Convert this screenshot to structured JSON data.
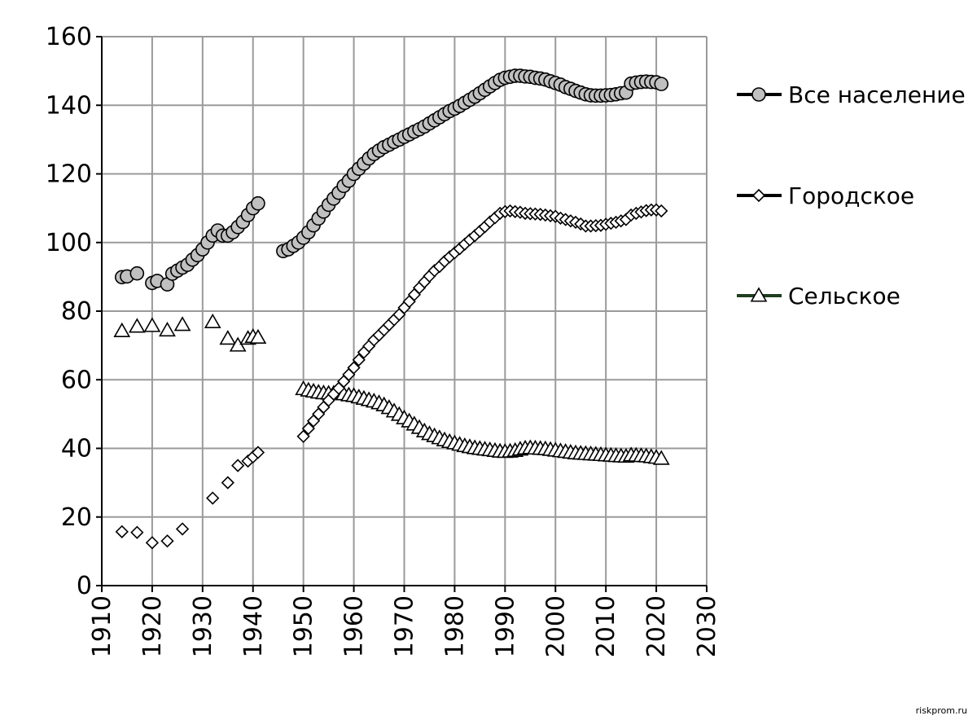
{
  "chart_data": {
    "type": "scatter",
    "xlim": [
      1910,
      2030
    ],
    "ylim": [
      0,
      160
    ],
    "x_ticks": [
      "1910",
      "1920",
      "1930",
      "1940",
      "1950",
      "1960",
      "1970",
      "1980",
      "1990",
      "2000",
      "2010",
      "2020",
      "2030"
    ],
    "y_ticks": [
      "0",
      "20",
      "40",
      "60",
      "80",
      "100",
      "120",
      "140",
      "160"
    ],
    "grid": true,
    "legend_position": "right",
    "series": [
      {
        "name": "Все население",
        "marker": "circle",
        "marker_fill": "#c0c0c0",
        "line_color": "#000000",
        "points": [
          [
            1914,
            89.9
          ],
          [
            1915,
            90.1
          ],
          [
            1917,
            91.0
          ],
          [
            1920,
            88.2
          ],
          [
            1921,
            88.8
          ],
          [
            1923,
            87.8
          ],
          [
            1924,
            90.9
          ],
          [
            1925,
            91.8
          ],
          [
            1926,
            92.7
          ],
          [
            1927,
            93.5
          ],
          [
            1928,
            95.0
          ],
          [
            1929,
            96.3
          ],
          [
            1930,
            98.0
          ],
          [
            1931,
            100.0
          ],
          [
            1932,
            102.0
          ],
          [
            1933,
            103.5
          ],
          [
            1934,
            102.0
          ],
          [
            1935,
            102.0
          ],
          [
            1936,
            103.0
          ],
          [
            1937,
            104.5
          ],
          [
            1938,
            106.0
          ],
          [
            1939,
            108.0
          ],
          [
            1940,
            110.0
          ],
          [
            1941,
            111.4
          ],
          [
            1946,
            97.5
          ],
          [
            1947,
            98.0
          ],
          [
            1948,
            99.0
          ],
          [
            1949,
            100.0
          ],
          [
            1950,
            101.4
          ],
          [
            1951,
            103.0
          ],
          [
            1952,
            105.0
          ],
          [
            1953,
            107.0
          ],
          [
            1954,
            109.0
          ],
          [
            1955,
            111.0
          ],
          [
            1956,
            112.8
          ],
          [
            1957,
            114.5
          ],
          [
            1958,
            116.5
          ],
          [
            1959,
            118.0
          ],
          [
            1960,
            120.0
          ],
          [
            1961,
            121.5
          ],
          [
            1962,
            123.0
          ],
          [
            1963,
            124.5
          ],
          [
            1964,
            125.8
          ],
          [
            1965,
            126.8
          ],
          [
            1966,
            127.8
          ],
          [
            1967,
            128.5
          ],
          [
            1968,
            129.3
          ],
          [
            1969,
            130.0
          ],
          [
            1970,
            130.8
          ],
          [
            1971,
            131.5
          ],
          [
            1972,
            132.3
          ],
          [
            1973,
            133.0
          ],
          [
            1974,
            133.8
          ],
          [
            1975,
            134.7
          ],
          [
            1976,
            135.6
          ],
          [
            1977,
            136.5
          ],
          [
            1978,
            137.4
          ],
          [
            1979,
            138.3
          ],
          [
            1980,
            139.0
          ],
          [
            1981,
            139.8
          ],
          [
            1982,
            140.7
          ],
          [
            1983,
            141.6
          ],
          [
            1984,
            142.5
          ],
          [
            1985,
            143.5
          ],
          [
            1986,
            144.5
          ],
          [
            1987,
            145.5
          ],
          [
            1988,
            146.5
          ],
          [
            1989,
            147.4
          ],
          [
            1990,
            148.0
          ],
          [
            1991,
            148.3
          ],
          [
            1992,
            148.6
          ],
          [
            1993,
            148.6
          ],
          [
            1994,
            148.4
          ],
          [
            1995,
            148.3
          ],
          [
            1996,
            148.0
          ],
          [
            1997,
            147.8
          ],
          [
            1998,
            147.5
          ],
          [
            1999,
            147.0
          ],
          [
            2000,
            146.5
          ],
          [
            2001,
            146.0
          ],
          [
            2002,
            145.3
          ],
          [
            2003,
            144.8
          ],
          [
            2004,
            144.2
          ],
          [
            2005,
            143.7
          ],
          [
            2006,
            143.2
          ],
          [
            2007,
            142.9
          ],
          [
            2008,
            142.8
          ],
          [
            2009,
            142.8
          ],
          [
            2010,
            142.9
          ],
          [
            2011,
            143.0
          ],
          [
            2012,
            143.2
          ],
          [
            2013,
            143.5
          ],
          [
            2014,
            143.7
          ],
          [
            2015,
            146.3
          ],
          [
            2016,
            146.6
          ],
          [
            2017,
            146.8
          ],
          [
            2018,
            146.9
          ],
          [
            2019,
            146.8
          ],
          [
            2020,
            146.7
          ],
          [
            2021,
            146.2
          ]
        ]
      },
      {
        "name": "Городское",
        "marker": "diamond",
        "marker_fill": "#ffffff",
        "line_color": "#000000",
        "points": [
          [
            1914,
            15.7
          ],
          [
            1917,
            15.5
          ],
          [
            1920,
            12.5
          ],
          [
            1923,
            13.0
          ],
          [
            1926,
            16.5
          ],
          [
            1932,
            25.5
          ],
          [
            1935,
            30.0
          ],
          [
            1937,
            35.0
          ],
          [
            1939,
            36.3
          ],
          [
            1940,
            37.5
          ],
          [
            1941,
            38.8
          ],
          [
            1950,
            43.5
          ],
          [
            1951,
            45.8
          ],
          [
            1952,
            48.0
          ],
          [
            1953,
            50.0
          ],
          [
            1954,
            52.0
          ],
          [
            1955,
            54.0
          ],
          [
            1956,
            55.8
          ],
          [
            1957,
            57.5
          ],
          [
            1958,
            59.5
          ],
          [
            1959,
            61.5
          ],
          [
            1960,
            63.5
          ],
          [
            1961,
            65.8
          ],
          [
            1962,
            68.0
          ],
          [
            1963,
            69.8
          ],
          [
            1964,
            71.6
          ],
          [
            1965,
            73.0
          ],
          [
            1966,
            74.5
          ],
          [
            1967,
            76.0
          ],
          [
            1968,
            77.5
          ],
          [
            1969,
            79.0
          ],
          [
            1970,
            81.0
          ],
          [
            1971,
            82.8
          ],
          [
            1972,
            84.8
          ],
          [
            1973,
            86.8
          ],
          [
            1974,
            88.5
          ],
          [
            1975,
            90.2
          ],
          [
            1976,
            91.8
          ],
          [
            1977,
            93.0
          ],
          [
            1978,
            94.5
          ],
          [
            1979,
            95.8
          ],
          [
            1980,
            97.0
          ],
          [
            1981,
            98.2
          ],
          [
            1982,
            99.5
          ],
          [
            1983,
            100.8
          ],
          [
            1984,
            102.0
          ],
          [
            1985,
            103.3
          ],
          [
            1986,
            104.6
          ],
          [
            1987,
            106.0
          ],
          [
            1988,
            107.2
          ],
          [
            1989,
            108.5
          ],
          [
            1990,
            109.0
          ],
          [
            1991,
            109.2
          ],
          [
            1992,
            109.0
          ],
          [
            1993,
            108.8
          ],
          [
            1994,
            108.5
          ],
          [
            1995,
            108.4
          ],
          [
            1996,
            108.3
          ],
          [
            1997,
            108.2
          ],
          [
            1998,
            108.0
          ],
          [
            1999,
            107.8
          ],
          [
            2000,
            107.6
          ],
          [
            2001,
            107.1
          ],
          [
            2002,
            106.7
          ],
          [
            2003,
            106.3
          ],
          [
            2004,
            105.9
          ],
          [
            2005,
            105.4
          ],
          [
            2006,
            104.8
          ],
          [
            2007,
            104.8
          ],
          [
            2008,
            104.9
          ],
          [
            2009,
            105.0
          ],
          [
            2010,
            105.3
          ],
          [
            2011,
            105.6
          ],
          [
            2012,
            105.9
          ],
          [
            2013,
            106.3
          ],
          [
            2014,
            106.7
          ],
          [
            2015,
            108.0
          ],
          [
            2016,
            108.5
          ],
          [
            2017,
            108.9
          ],
          [
            2018,
            109.3
          ],
          [
            2019,
            109.5
          ],
          [
            2020,
            109.5
          ],
          [
            2021,
            109.2
          ]
        ]
      },
      {
        "name": "Сельское",
        "marker": "triangle",
        "marker_fill": "#ffffff",
        "line_color": "#1f3d1f",
        "points": [
          [
            1914,
            74.2
          ],
          [
            1917,
            75.5
          ],
          [
            1920,
            75.7
          ],
          [
            1923,
            74.4
          ],
          [
            1926,
            76.0
          ],
          [
            1932,
            76.8
          ],
          [
            1935,
            72.0
          ],
          [
            1937,
            70.0
          ],
          [
            1939,
            72.0
          ],
          [
            1940,
            72.5
          ],
          [
            1941,
            72.3
          ],
          [
            1950,
            57.3
          ],
          [
            1951,
            56.9
          ],
          [
            1952,
            56.6
          ],
          [
            1953,
            56.3
          ],
          [
            1954,
            56.1
          ],
          [
            1955,
            56.0
          ],
          [
            1956,
            56.0
          ],
          [
            1957,
            56.0
          ],
          [
            1958,
            55.8
          ],
          [
            1959,
            55.5
          ],
          [
            1960,
            55.3
          ],
          [
            1961,
            54.9
          ],
          [
            1962,
            54.5
          ],
          [
            1963,
            54.1
          ],
          [
            1964,
            53.7
          ],
          [
            1965,
            53.2
          ],
          [
            1966,
            52.6
          ],
          [
            1967,
            51.8
          ],
          [
            1968,
            50.8
          ],
          [
            1969,
            49.8
          ],
          [
            1970,
            48.8
          ],
          [
            1971,
            47.9
          ],
          [
            1972,
            47.0
          ],
          [
            1973,
            46.0
          ],
          [
            1974,
            45.0
          ],
          [
            1975,
            44.2
          ],
          [
            1976,
            43.6
          ],
          [
            1977,
            43.0
          ],
          [
            1978,
            42.4
          ],
          [
            1979,
            41.9
          ],
          [
            1980,
            41.5
          ],
          [
            1981,
            41.1
          ],
          [
            1982,
            40.7
          ],
          [
            1983,
            40.4
          ],
          [
            1984,
            40.1
          ],
          [
            1985,
            39.9
          ],
          [
            1986,
            39.7
          ],
          [
            1987,
            39.5
          ],
          [
            1988,
            39.3
          ],
          [
            1989,
            39.1
          ],
          [
            1990,
            39.0
          ],
          [
            1991,
            39.1
          ],
          [
            1992,
            39.3
          ],
          [
            1993,
            39.7
          ],
          [
            1994,
            40.0
          ],
          [
            1995,
            40.1
          ],
          [
            1996,
            40.0
          ],
          [
            1997,
            39.9
          ],
          [
            1998,
            39.8
          ],
          [
            1999,
            39.6
          ],
          [
            2000,
            39.4
          ],
          [
            2001,
            39.2
          ],
          [
            2002,
            39.0
          ],
          [
            2003,
            38.8
          ],
          [
            2004,
            38.6
          ],
          [
            2005,
            38.5
          ],
          [
            2006,
            38.4
          ],
          [
            2007,
            38.3
          ],
          [
            2008,
            38.2
          ],
          [
            2009,
            38.1
          ],
          [
            2010,
            38.0
          ],
          [
            2011,
            37.9
          ],
          [
            2012,
            37.8
          ],
          [
            2013,
            37.7
          ],
          [
            2014,
            37.6
          ],
          [
            2015,
            38.0
          ],
          [
            2016,
            37.9
          ],
          [
            2017,
            37.8
          ],
          [
            2018,
            37.7
          ],
          [
            2019,
            37.5
          ],
          [
            2020,
            37.3
          ],
          [
            2021,
            37.0
          ]
        ]
      }
    ]
  },
  "watermark": "riskprom.ru"
}
